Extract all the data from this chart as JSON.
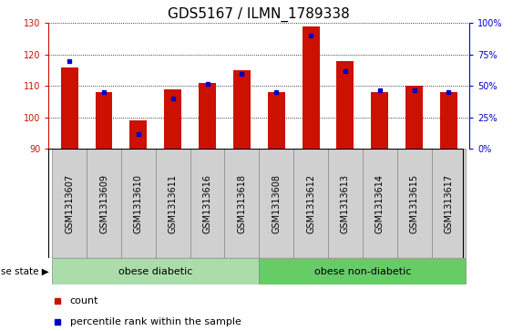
{
  "title": "GDS5167 / ILMN_1789338",
  "samples": [
    "GSM1313607",
    "GSM1313609",
    "GSM1313610",
    "GSM1313611",
    "GSM1313616",
    "GSM1313618",
    "GSM1313608",
    "GSM1313612",
    "GSM1313613",
    "GSM1313614",
    "GSM1313615",
    "GSM1313617"
  ],
  "counts": [
    116.0,
    108.0,
    99.0,
    109.0,
    111.0,
    115.0,
    108.0,
    129.0,
    118.0,
    108.0,
    110.0,
    108.0
  ],
  "percentiles": [
    70,
    45,
    12,
    40,
    52,
    60,
    45,
    90,
    62,
    47,
    47,
    45
  ],
  "ylim_left": [
    90,
    130
  ],
  "ylim_right": [
    0,
    100
  ],
  "yticks_left": [
    90,
    100,
    110,
    120,
    130
  ],
  "yticks_right": [
    0,
    25,
    50,
    75,
    100
  ],
  "ytick_labels_right": [
    "0%",
    "25%",
    "50%",
    "75%",
    "100%"
  ],
  "bar_color": "#cc1100",
  "dot_color": "#0000cc",
  "group1_label": "obese diabetic",
  "group2_label": "obese non-diabetic",
  "group1_count": 6,
  "group2_count": 6,
  "group1_color": "#aaddaa",
  "group2_color": "#66cc66",
  "disease_label": "disease state",
  "legend_count_label": "count",
  "legend_percentile_label": "percentile rank within the sample",
  "bar_width": 0.5,
  "title_fontsize": 11,
  "tick_fontsize": 7,
  "label_fontsize": 8,
  "ax_color_left": "#cc1100",
  "ax_color_right": "#0000cc",
  "sample_box_color": "#d0d0d0",
  "sample_box_edgecolor": "#888888"
}
